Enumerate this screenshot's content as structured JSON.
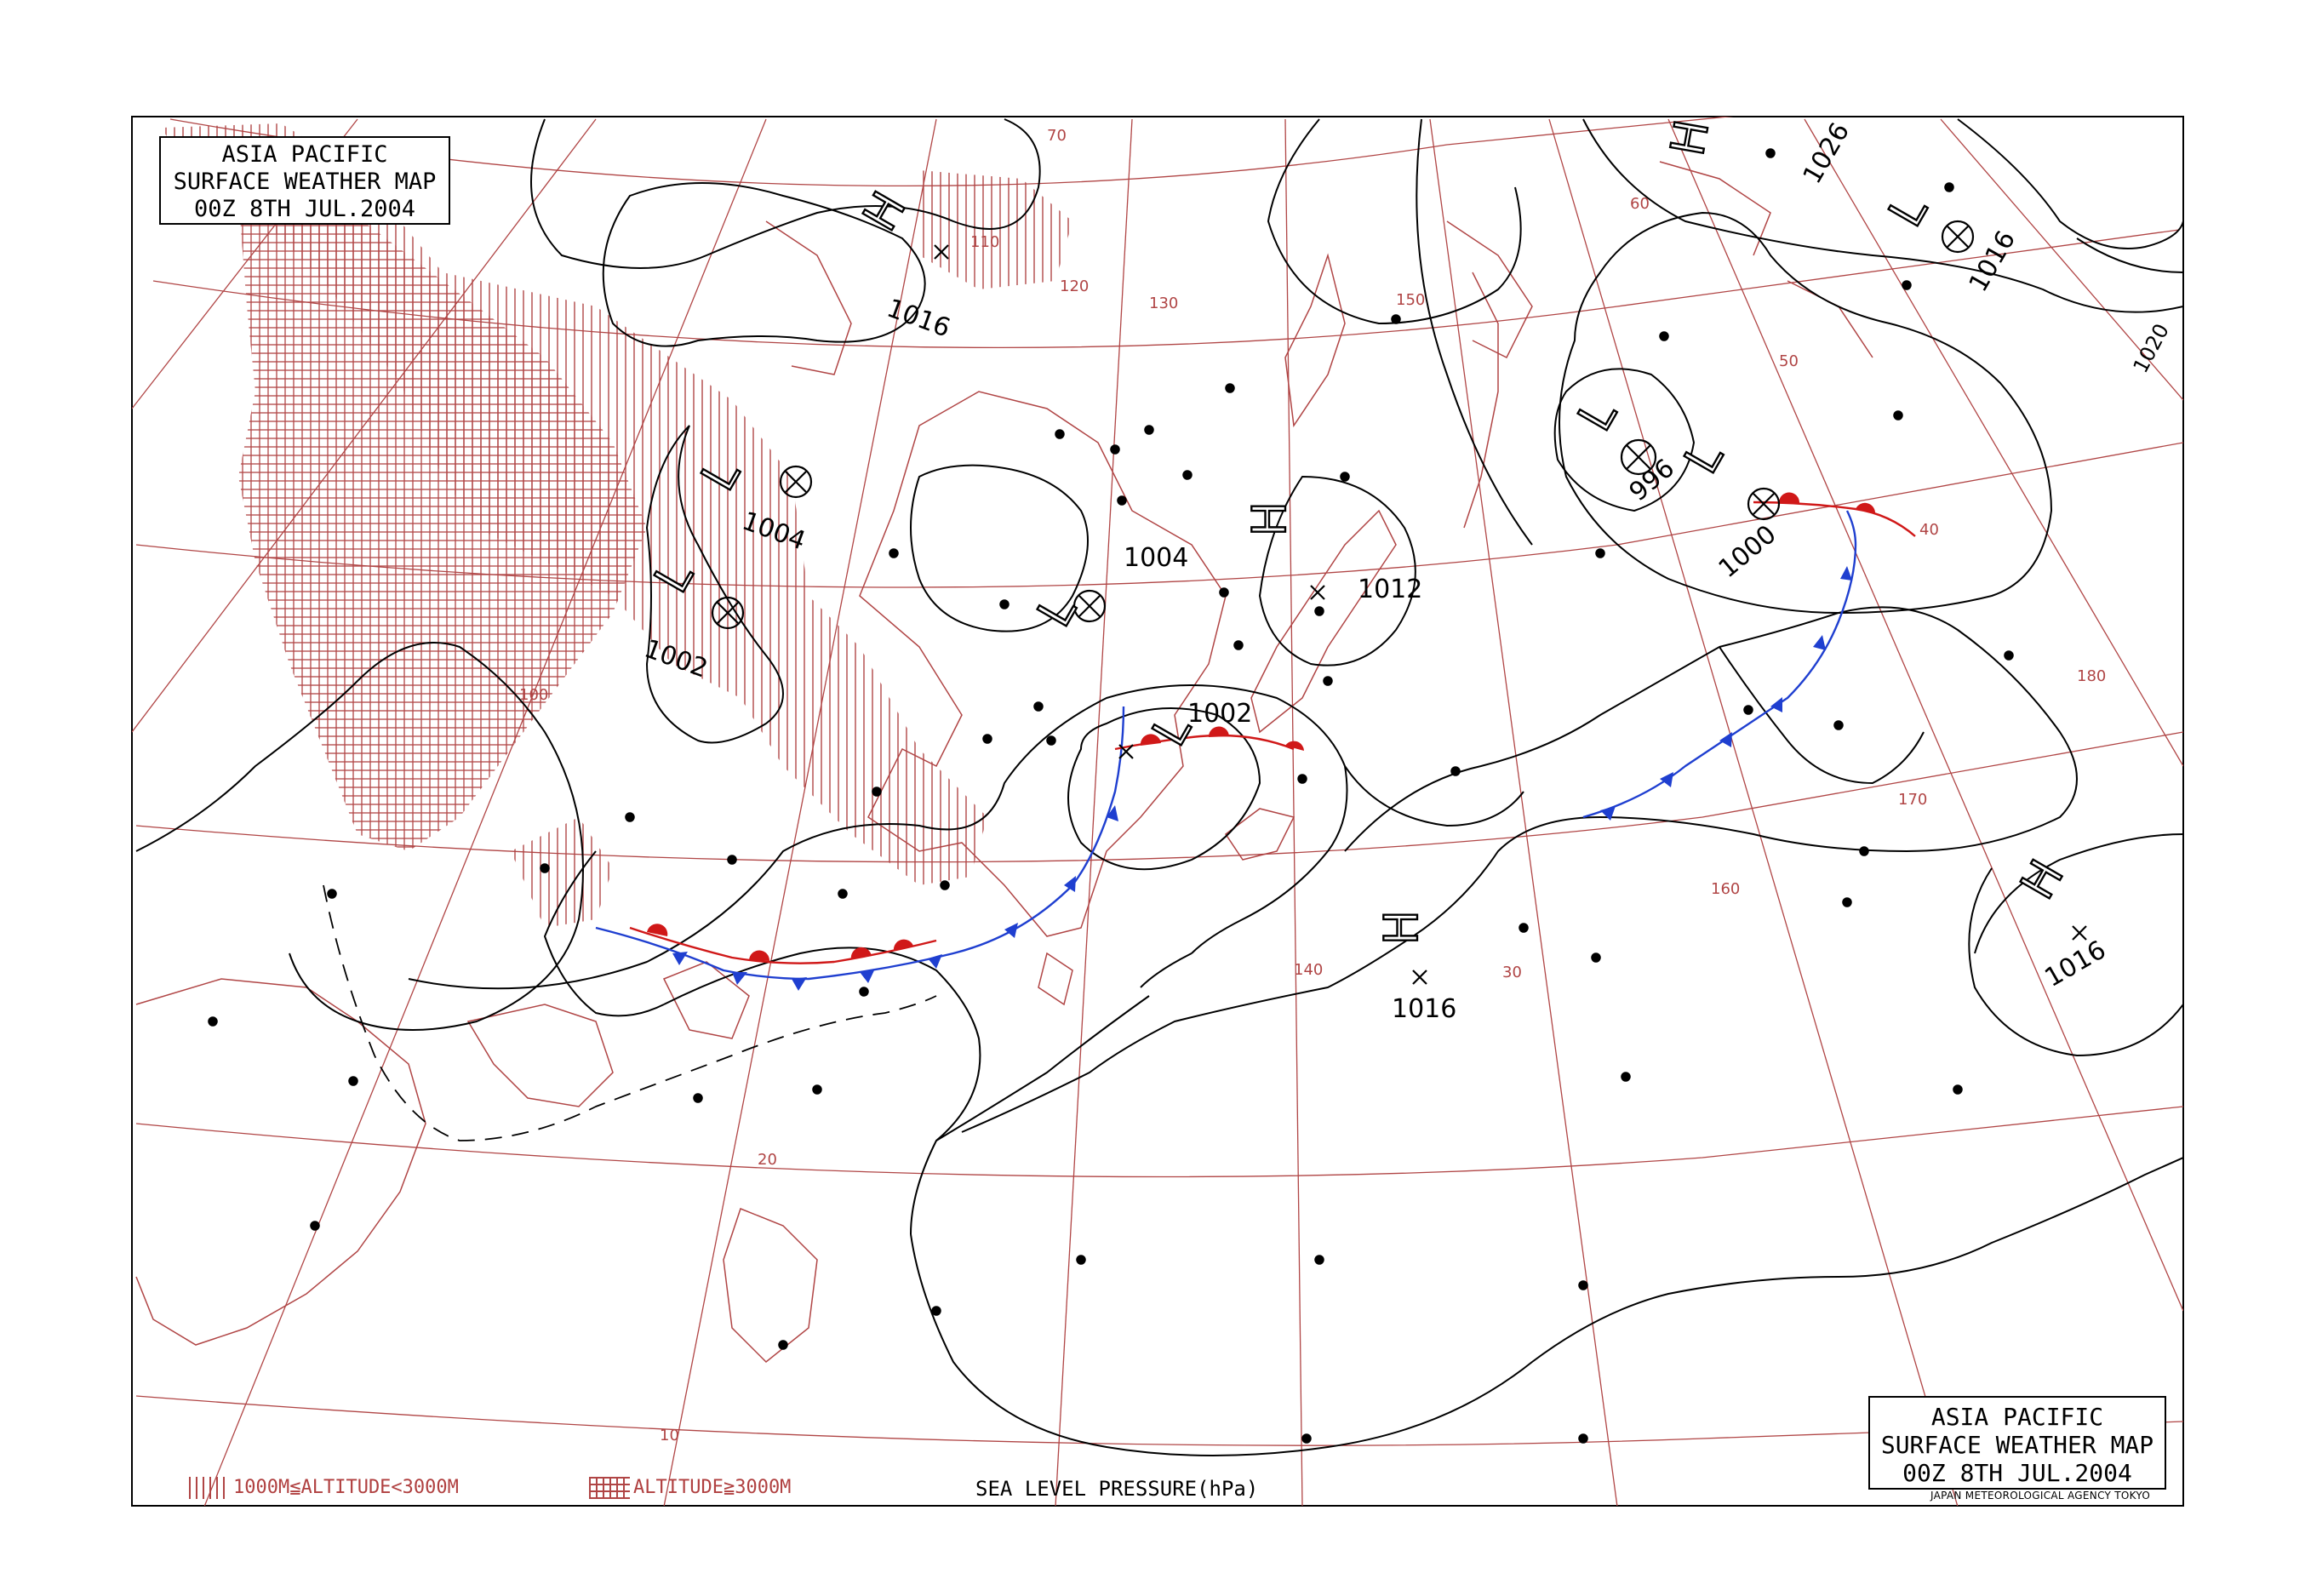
{
  "title": {
    "line1": "ASIA PACIFIC",
    "line2": "SURFACE WEATHER MAP",
    "line3": "00Z  8TH JUL.2004"
  },
  "credit": "JAPAN METEOROLOGICAL AGENCY TOKYO",
  "legend": {
    "altitude_low": "1000M≦ALTITUDE<3000M",
    "altitude_high": "ALTITUDE≧3000M",
    "pressure_unit": "SEA LEVEL PRESSURE(hPa)"
  },
  "colors": {
    "isobar": "#000000",
    "graticule": "#b04545",
    "coast": "#b04545",
    "cold_front": "#1f3fd0",
    "warm_front": "#d01818",
    "terrain": "#b04545"
  },
  "pressure_systems": [
    {
      "type": "H",
      "value": "1016"
    },
    {
      "type": "L",
      "value": "1004"
    },
    {
      "type": "L",
      "value": "1002"
    },
    {
      "type": "L",
      "value": "1004"
    },
    {
      "type": "H",
      "value": "1012"
    },
    {
      "type": "L",
      "value": "1002"
    },
    {
      "type": "L",
      "value": "996"
    },
    {
      "type": "L",
      "value": "1000"
    },
    {
      "type": "H",
      "value": "1026"
    },
    {
      "type": "L",
      "value": "1016"
    },
    {
      "type": "H",
      "value": "1016"
    },
    {
      "type": "H",
      "value": "1016"
    }
  ],
  "isobar_labels": [
    "1020"
  ],
  "latitude_labels": [
    "70",
    "60",
    "50",
    "40",
    "30",
    "20",
    "10"
  ],
  "longitude_labels": [
    "100",
    "110",
    "120",
    "130",
    "140",
    "150",
    "160",
    "170",
    "180"
  ]
}
